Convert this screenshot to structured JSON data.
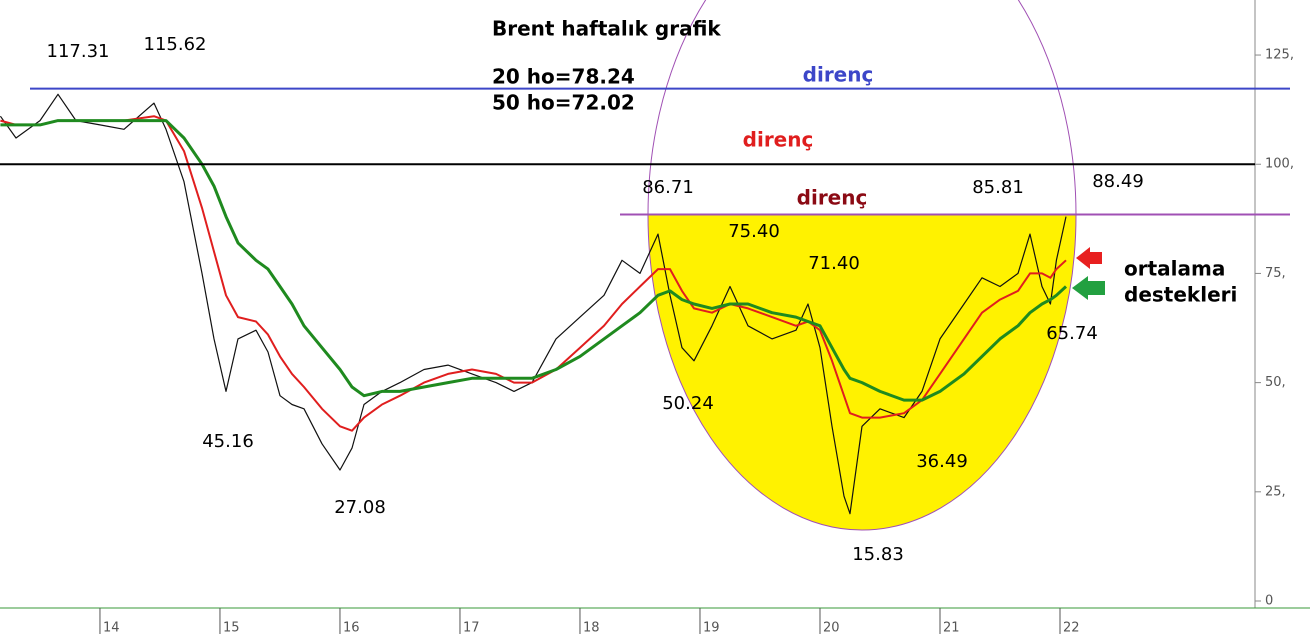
{
  "chart_data": {
    "type": "line",
    "title": "Brent haftalık grafik",
    "subtitle_lines": [
      "20 ho=78.24",
      "50 ho=72.02"
    ],
    "x": [
      13.17,
      13.3,
      13.5,
      13.65,
      13.8,
      14.0,
      14.2,
      14.45,
      14.55,
      14.7,
      14.85,
      14.95,
      15.05,
      15.15,
      15.3,
      15.4,
      15.5,
      15.6,
      15.7,
      15.85,
      16.0,
      16.1,
      16.2,
      16.35,
      16.5,
      16.7,
      16.9,
      17.1,
      17.3,
      17.45,
      17.6,
      17.8,
      18.0,
      18.2,
      18.35,
      18.5,
      18.65,
      18.75,
      18.85,
      18.95,
      19.1,
      19.25,
      19.4,
      19.6,
      19.8,
      19.9,
      20.0,
      20.1,
      20.2,
      20.25,
      20.35,
      20.5,
      20.7,
      20.85,
      21.0,
      21.2,
      21.35,
      21.5,
      21.65,
      21.75,
      21.85,
      21.92,
      21.97,
      22.05
    ],
    "series": [
      {
        "color": "#111111",
        "width": 1.2,
        "values": [
          111,
          106,
          110,
          116,
          110,
          109,
          108,
          114,
          108,
          96,
          75,
          60,
          48,
          60,
          62,
          57,
          47,
          45,
          44,
          36,
          30,
          35,
          45,
          48,
          50,
          53,
          54,
          52,
          50,
          48,
          50,
          60,
          65,
          70,
          78,
          75,
          84,
          70,
          58,
          55,
          63,
          72,
          63,
          60,
          62,
          68,
          58,
          40,
          24,
          20,
          40,
          44,
          42,
          48,
          60,
          68,
          74,
          72,
          75,
          84,
          72,
          68,
          78,
          88
        ]
      },
      {
        "color": "#e01e1e",
        "width": 2,
        "values": [
          110,
          109,
          109,
          110,
          110,
          110,
          110,
          111,
          110,
          103,
          90,
          80,
          70,
          65,
          64,
          61,
          56,
          52,
          49,
          44,
          40,
          39,
          42,
          45,
          47,
          50,
          52,
          53,
          52,
          50,
          50,
          53,
          58,
          63,
          68,
          72,
          76,
          76,
          71,
          67,
          66,
          68,
          67,
          65,
          63,
          64,
          62,
          55,
          47,
          43,
          42,
          42,
          43,
          46,
          52,
          60,
          66,
          69,
          71,
          75,
          75,
          74,
          76,
          78
        ]
      },
      {
        "color": "#1f8a1f",
        "width": 3,
        "values": [
          109,
          109,
          109,
          110,
          110,
          110,
          110,
          110,
          110,
          106,
          100,
          95,
          88,
          82,
          78,
          76,
          72,
          68,
          63,
          58,
          53,
          49,
          47,
          48,
          48,
          49,
          50,
          51,
          51,
          51,
          51,
          53,
          56,
          60,
          63,
          66,
          70,
          71,
          69,
          68,
          67,
          68,
          68,
          66,
          65,
          64,
          63,
          58,
          53,
          51,
          50,
          48,
          46,
          46,
          48,
          52,
          56,
          60,
          63,
          66,
          68,
          69,
          70,
          72
        ]
      }
    ],
    "levels": [
      {
        "value": 117.31,
        "color": "#3c46c8",
        "label": "direnç",
        "label_color": "#3c46c8"
      },
      {
        "value": 100,
        "color": "#000000",
        "label": "direnç",
        "label_color": "#e01e1e"
      },
      {
        "value": 88.49,
        "color": "#a050b4",
        "label": "direnç",
        "label_color": "#8b0a14"
      }
    ],
    "annotations": [
      "117.31",
      "115.62",
      "45.16",
      "27.08",
      "86.71",
      "75.40",
      "50.24",
      "71.40",
      "15.83",
      "36.49",
      "85.81",
      "88.49",
      "65.74"
    ],
    "side_note": [
      "ortalama",
      "destekleri"
    ],
    "xlim": [
      13.167,
      23.625
    ],
    "xticks": [
      14,
      15,
      16,
      17,
      18,
      19,
      20,
      21,
      22
    ],
    "ylim": [
      -1.6,
      137.6
    ],
    "yticks": [
      {
        "value": 0,
        "label": "0"
      },
      {
        "value": 25,
        "label": "25,"
      },
      {
        "value": 50,
        "label": "50,"
      },
      {
        "value": 75,
        "label": "75,"
      },
      {
        "value": 100,
        "label": "100,"
      },
      {
        "value": 125,
        "label": "125,"
      }
    ]
  }
}
